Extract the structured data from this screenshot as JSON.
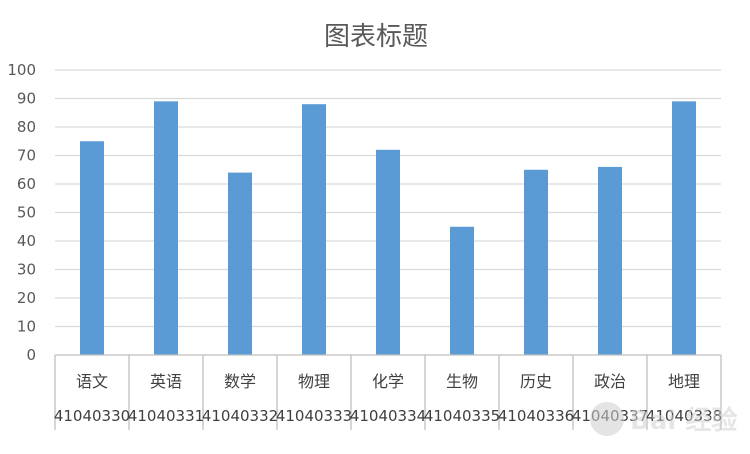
{
  "chart_data": {
    "type": "bar",
    "title": "图表标题",
    "ylim": [
      0,
      100
    ],
    "yticks": [
      0,
      10,
      20,
      30,
      40,
      50,
      60,
      70,
      80,
      90,
      100
    ],
    "grid": true,
    "categories": [
      "语文",
      "英语",
      "数学",
      "物理",
      "化学",
      "生物",
      "历史",
      "政治",
      "地理"
    ],
    "groups": [
      "41040330",
      "41040331",
      "41040332",
      "41040333",
      "41040334",
      "41040335",
      "41040336",
      "41040337",
      "41040338"
    ],
    "values": [
      75,
      89,
      64,
      88,
      72,
      45,
      65,
      66,
      89
    ],
    "bar_color": "#5B9BD5",
    "grid_color": "#D9D9D9",
    "axis_color": "#BFBFBF",
    "xlabel": "",
    "ylabel": ""
  },
  "watermark": {
    "text": "Bai 经验",
    "icon": "baidu-paw-icon"
  }
}
